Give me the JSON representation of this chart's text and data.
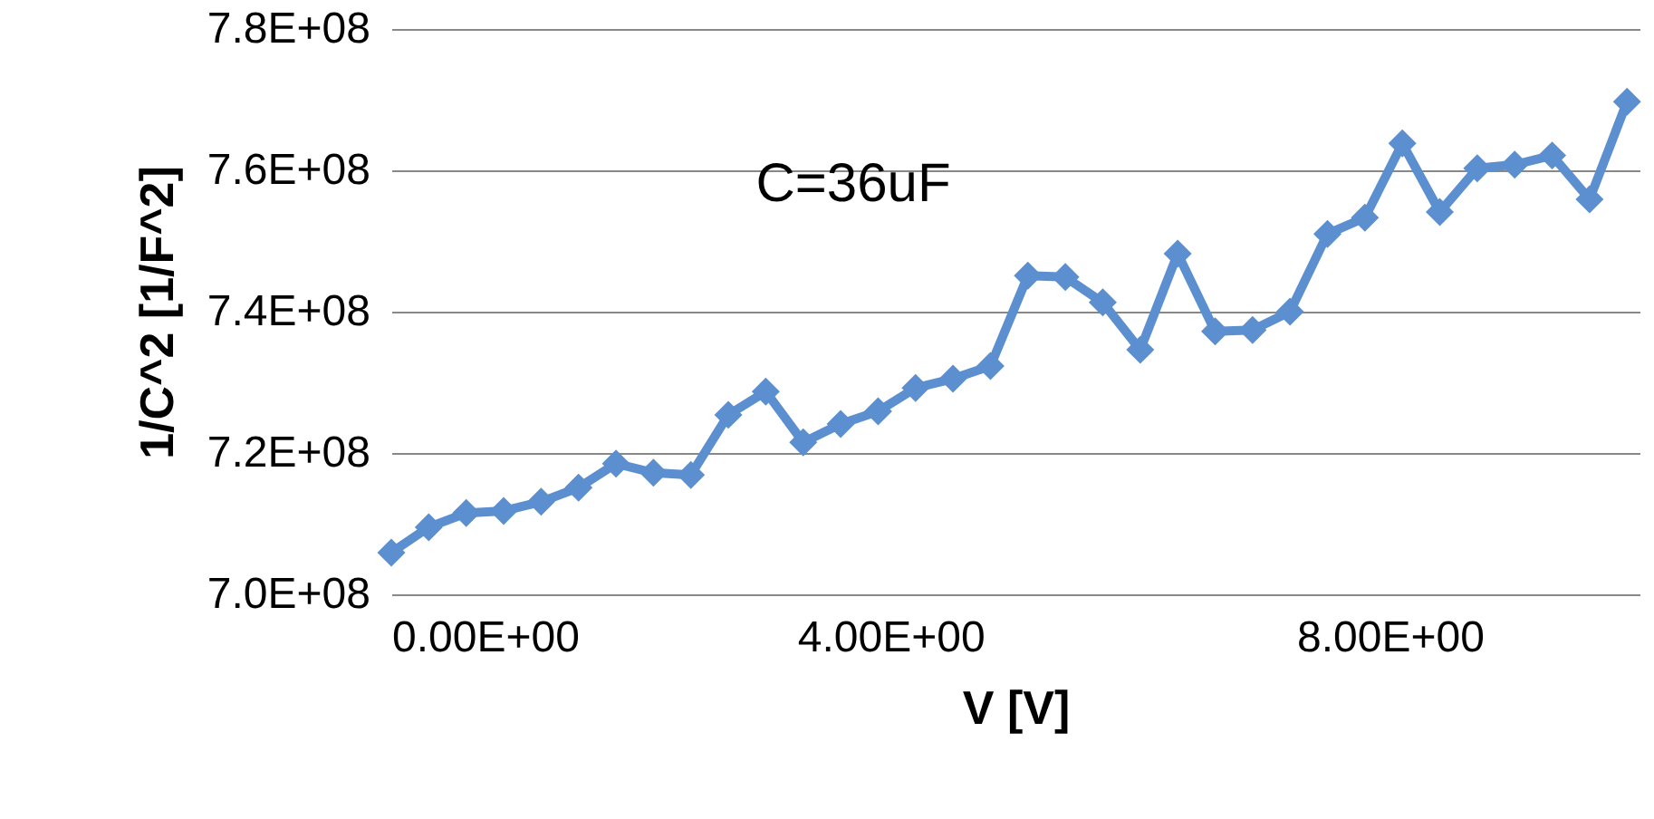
{
  "chart_data": {
    "type": "line",
    "xlabel": "V [V]",
    "ylabel": "1/C^2 [1/F^2]",
    "annotations": [
      "C=36uF"
    ],
    "x": [
      0,
      0.3,
      0.6,
      0.9,
      1.2,
      1.5,
      1.8,
      2.1,
      2.4,
      2.7,
      3.0,
      3.3,
      3.6,
      3.9,
      4.2,
      4.5,
      4.8,
      5.1,
      5.4,
      5.7,
      6.0,
      6.3,
      6.6,
      6.9,
      7.2,
      7.5,
      7.8,
      8.1,
      8.4,
      8.7,
      9.0,
      9.3,
      9.6,
      9.9
    ],
    "series": [
      {
        "color": "#5b8fd0",
        "values": [
          705900000,
          709500000,
          711500000,
          711800000,
          713100000,
          715100000,
          718500000,
          717200000,
          716900000,
          725400000,
          728700000,
          721500000,
          724100000,
          725900000,
          729200000,
          730500000,
          732300000,
          745100000,
          744900000,
          741300000,
          734600000,
          748200000,
          737200000,
          737400000,
          740000000,
          751000000,
          753300000,
          763800000,
          754100000,
          760300000,
          760800000,
          762100000,
          755900000,
          769700000
        ]
      }
    ],
    "xlim": [
      0,
      10
    ],
    "ylim": [
      700000000,
      780000000
    ],
    "xticks": [
      {
        "value": 0,
        "label": "0.00E+00"
      },
      {
        "value": 4,
        "label": "4.00E+00"
      },
      {
        "value": 8,
        "label": "8.00E+00"
      }
    ],
    "yticks": [
      {
        "value": 700000000,
        "label": "7.0E+08"
      },
      {
        "value": 720000000,
        "label": "7.2E+08"
      },
      {
        "value": 740000000,
        "label": "7.4E+08"
      },
      {
        "value": 760000000,
        "label": "7.6E+08"
      },
      {
        "value": 780000000,
        "label": "7.8E+08"
      }
    ],
    "grid": "y",
    "marker": "diamond",
    "line_style": "solid"
  }
}
